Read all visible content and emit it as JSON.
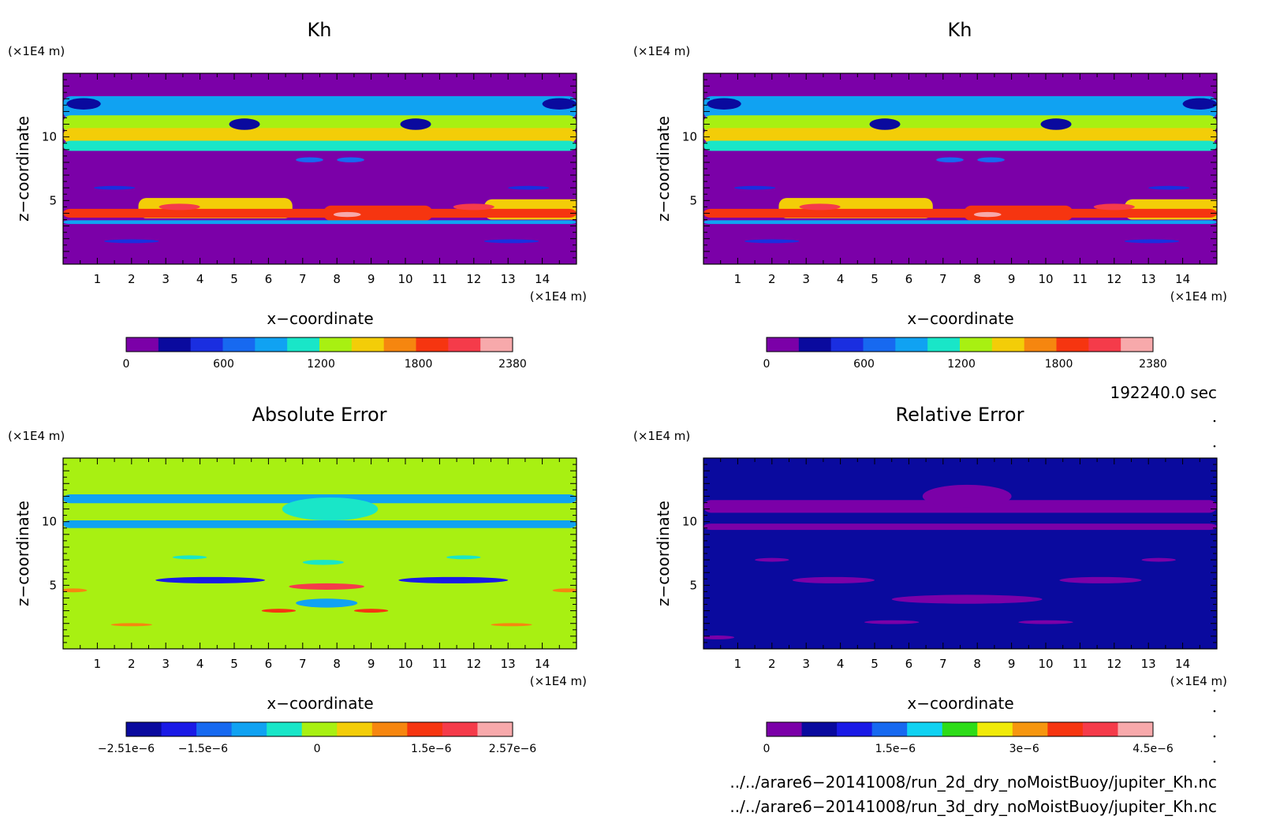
{
  "chart_data": [
    {
      "type": "heatmap",
      "id": "top-left",
      "title": "Kh",
      "xlabel": "x−coordinate",
      "ylabel": "z−coordinate",
      "x_unit": "(×1E4 m)",
      "y_unit": "(×1E4 m)",
      "xlim": [
        0,
        15
      ],
      "ylim": [
        0,
        15
      ],
      "x_ticks": [
        1,
        2,
        3,
        4,
        5,
        6,
        7,
        8,
        9,
        10,
        11,
        12,
        13,
        14
      ],
      "y_ticks": [
        5,
        10
      ],
      "background_level": 0,
      "colorbar": {
        "min": 0,
        "max": 2380,
        "tick_values": [
          0,
          600,
          1200,
          1800,
          2380
        ],
        "tick_labels": [
          "0",
          "600",
          "1200",
          "1800",
          "2380"
        ],
        "colors": [
          "#7b00a8",
          "#0a0a9e",
          "#1a2ee0",
          "#1769f0",
          "#10a2f2",
          "#19e6c8",
          "#a8f012",
          "#f3cd08",
          "#f6860f",
          "#f63510",
          "#f53b4a",
          "#f7a9ab"
        ]
      }
    },
    {
      "type": "heatmap",
      "id": "top-right",
      "title": "Kh",
      "xlabel": "x−coordinate",
      "ylabel": "z−coordinate",
      "x_unit": "(×1E4 m)",
      "y_unit": "(×1E4 m)",
      "xlim": [
        0,
        15
      ],
      "ylim": [
        0,
        15
      ],
      "x_ticks": [
        1,
        2,
        3,
        4,
        5,
        6,
        7,
        8,
        9,
        10,
        11,
        12,
        13,
        14
      ],
      "y_ticks": [
        5,
        10
      ],
      "background_level": 0,
      "colorbar": {
        "min": 0,
        "max": 2380,
        "tick_values": [
          0,
          600,
          1200,
          1800,
          2380
        ],
        "tick_labels": [
          "0",
          "600",
          "1200",
          "1800",
          "2380"
        ],
        "colors": [
          "#7b00a8",
          "#0a0a9e",
          "#1a2ee0",
          "#1769f0",
          "#10a2f2",
          "#19e6c8",
          "#a8f012",
          "#f3cd08",
          "#f6860f",
          "#f63510",
          "#f53b4a",
          "#f7a9ab"
        ]
      }
    },
    {
      "type": "heatmap",
      "id": "bottom-left",
      "title": "Absolute Error",
      "xlabel": "x−coordinate",
      "ylabel": "z−coordinate",
      "x_unit": "(×1E4 m)",
      "y_unit": "(×1E4 m)",
      "xlim": [
        0,
        15
      ],
      "ylim": [
        0,
        15
      ],
      "x_ticks": [
        1,
        2,
        3,
        4,
        5,
        6,
        7,
        8,
        9,
        10,
        11,
        12,
        13,
        14
      ],
      "y_ticks": [
        5,
        10
      ],
      "background_level": 0,
      "colorbar": {
        "min": -2.51e-06,
        "max": 2.57e-06,
        "tick_values": [
          -2.51e-06,
          -1.5e-06,
          0,
          1.5e-06,
          2.57e-06
        ],
        "tick_labels": [
          "−2.51e−6",
          "−1.5e−6",
          "0",
          "1.5e−6",
          "2.57e−6"
        ],
        "colors": [
          "#0a0a9e",
          "#1a1ae6",
          "#1769f0",
          "#10a2f2",
          "#19e6c8",
          "#a8f012",
          "#f3cd08",
          "#f6860f",
          "#f63510",
          "#f53b4a",
          "#f7a9ab"
        ]
      }
    },
    {
      "type": "heatmap",
      "id": "bottom-right",
      "title": "Relative Error",
      "xlabel": "x−coordinate",
      "ylabel": "z−coordinate",
      "x_unit": "(×1E4 m)",
      "y_unit": "(×1E4 m)",
      "xlim": [
        0,
        15
      ],
      "ylim": [
        0,
        15
      ],
      "x_ticks": [
        1,
        2,
        3,
        4,
        5,
        6,
        7,
        8,
        9,
        10,
        11,
        12,
        13,
        14
      ],
      "y_ticks": [
        5,
        10
      ],
      "background_level": 5e-07,
      "colorbar": {
        "min": 0,
        "max": 4.5e-06,
        "tick_values": [
          0,
          1.5e-06,
          3e-06,
          4.5e-06
        ],
        "tick_labels": [
          "0",
          "1.5e−6",
          "3e−6",
          "4.5e−6"
        ],
        "colors": [
          "#7b00a8",
          "#0a0a9e",
          "#1a1ae6",
          "#1769f0",
          "#10d2f2",
          "#2ddc18",
          "#f0ea08",
          "#f6960f",
          "#f63510",
          "#f53b4a",
          "#f7a9ab"
        ]
      }
    }
  ],
  "info": {
    "time": "192240.0 sec",
    "file1": "../../arare6−20141008/run_2d_dry_noMoistBuoy/jupiter_Kh.nc",
    "file2": "../../arare6−20141008/run_3d_dry_noMoistBuoy/jupiter_Kh.nc"
  }
}
